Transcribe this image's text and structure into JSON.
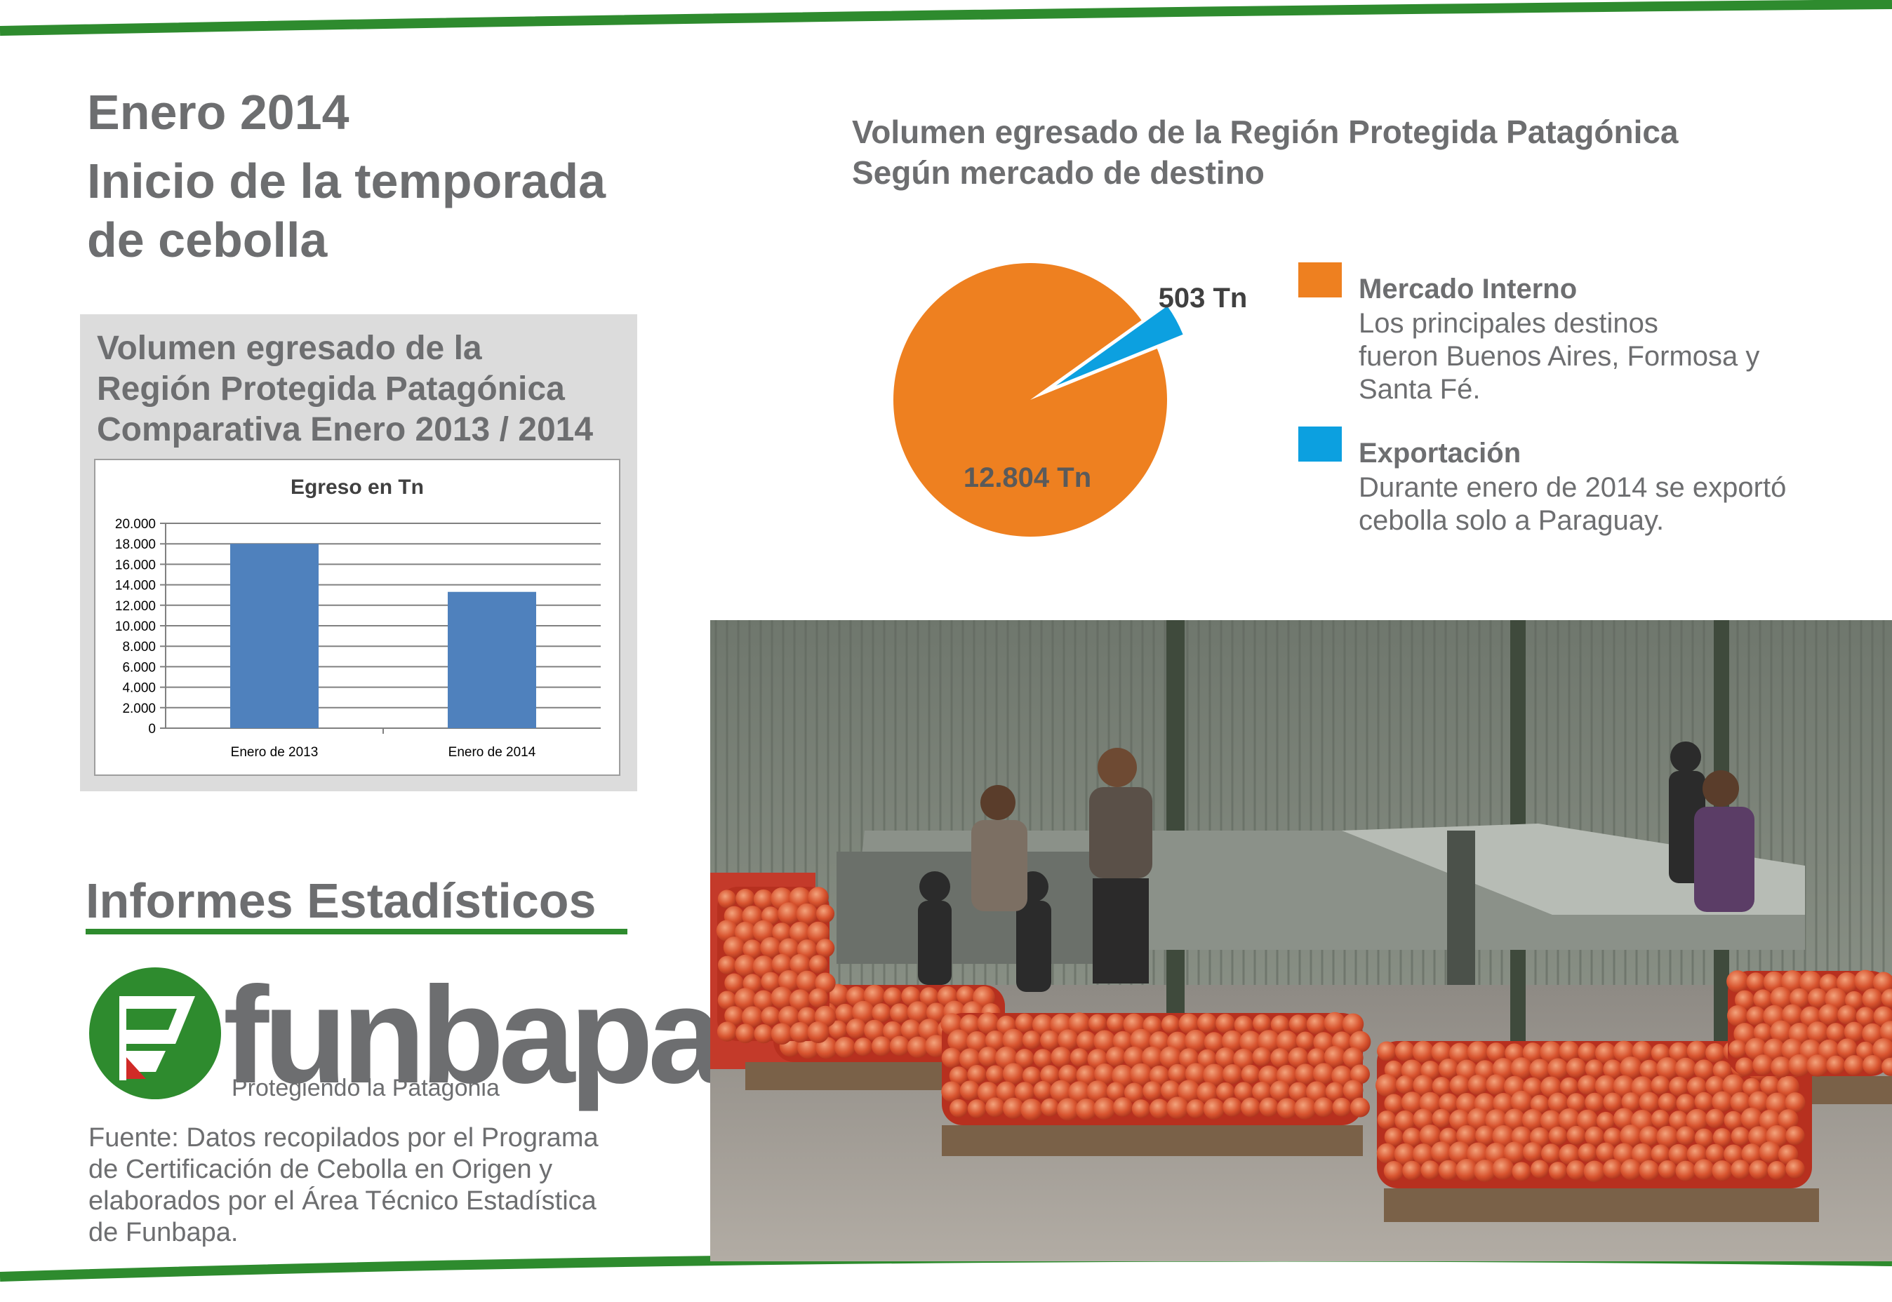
{
  "header": {
    "line1": "Enero 2014",
    "line2": "Inicio de la temporada",
    "line3": "de cebolla"
  },
  "bar_box": {
    "title_line1": "Volumen egresado de la",
    "title_line2": "Región Protegida Patagónica",
    "title_line3": "Comparativa Enero 2013 / 2014"
  },
  "pie_section": {
    "title_line1": "Volumen egresado de la Región Protegida Patagónica",
    "title_line2": "Según mercado de destino"
  },
  "legend": {
    "internal_title": "Mercado Interno",
    "internal_line1": "Los principales destinos",
    "internal_line2": "fueron Buenos Aires, Formosa y",
    "internal_line3": "Santa Fé.",
    "export_title": "Exportación",
    "export_line1": "Durante enero de 2014 se exportó",
    "export_line2": "cebolla solo a Paraguay."
  },
  "informes": "Informes Estadísticos",
  "logo": {
    "word": "funbapa",
    "tagline": "Protegiendo la Patagonia"
  },
  "fuente": {
    "line1": "Fuente: Datos recopilados por el Programa",
    "line2": "de Certificación de Cebolla en Origen y",
    "line3": "elaborados por el Área Técnico Estadística",
    "line4": "de Funbapa."
  },
  "colors": {
    "green": "#2e8b2e",
    "orange": "#ee8020",
    "blue": "#0ca0e0",
    "bar": "#4f81bd",
    "text": "#6d6e70",
    "logo_red": "#d02a27"
  },
  "photo": {
    "icon": "onion-packing-plant-photo"
  },
  "chart_data": [
    {
      "type": "bar",
      "title": "Egreso en Tn",
      "categories": [
        "Enero de 2013",
        "Enero de 2014"
      ],
      "values": [
        18000,
        13307
      ],
      "ylim": [
        0,
        20000
      ],
      "yticks": [
        "0",
        "2.000",
        "4.000",
        "6.000",
        "8.000",
        "10.000",
        "12.000",
        "14.000",
        "16.000",
        "18.000",
        "20.000"
      ],
      "grid": true,
      "color": "#4f81bd"
    },
    {
      "type": "pie",
      "slices": [
        {
          "label": "Mercado Interno",
          "value": 12804,
          "value_label": "12.804 Tn",
          "color": "#ee8020"
        },
        {
          "label": "Exportación",
          "value": 503,
          "value_label": "503 Tn",
          "color": "#0ca0e0"
        }
      ]
    }
  ]
}
